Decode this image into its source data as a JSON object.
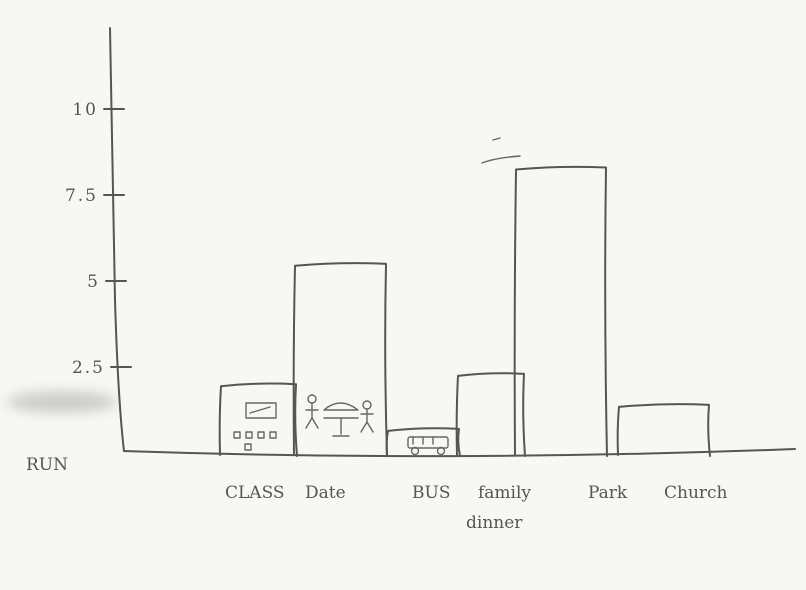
{
  "chart_data": {
    "type": "bar",
    "title": "",
    "xlabel": "",
    "ylabel": "RUN",
    "ylim": [
      0,
      12.5
    ],
    "yticks": [
      {
        "value": 2.5,
        "label": "2.5"
      },
      {
        "value": 5,
        "label": "5"
      },
      {
        "value": 7.5,
        "label": "7.5"
      },
      {
        "value": 10,
        "label": "10"
      }
    ],
    "categories": [
      "CLASS",
      "Date",
      "BUS",
      "family dinner",
      "Park",
      "Church"
    ],
    "category_lines": [
      [
        "CLASS"
      ],
      [
        "Date"
      ],
      [
        "BUS"
      ],
      [
        "family",
        "dinner"
      ],
      [
        "Park"
      ],
      [
        "Church"
      ]
    ],
    "values": [
      2.0,
      5.5,
      0.7,
      2.3,
      8.3,
      1.4
    ],
    "grid": false,
    "style": "hand-drawn pencil sketch"
  }
}
